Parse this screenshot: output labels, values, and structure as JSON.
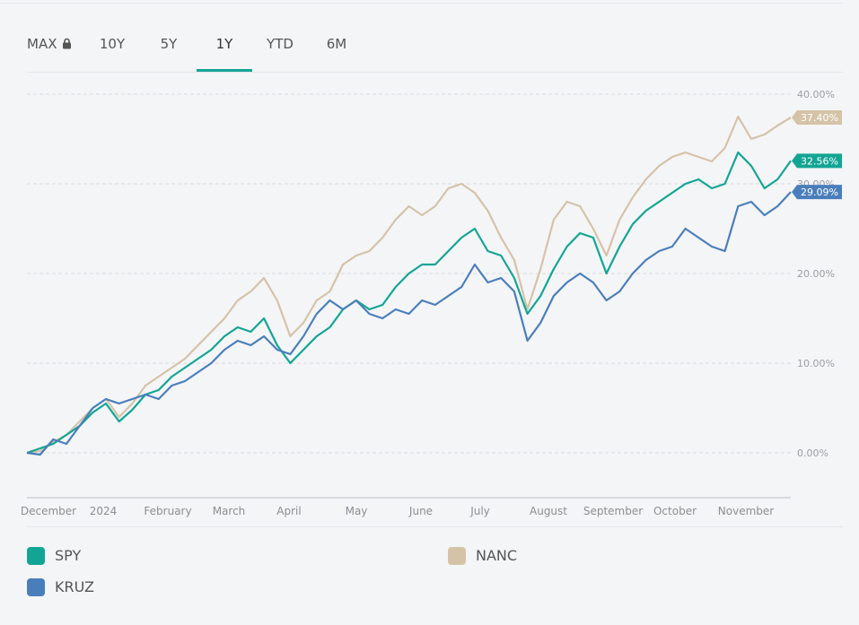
{
  "tabs": [
    {
      "label": "MAX",
      "locked": true
    },
    {
      "label": "10Y"
    },
    {
      "label": "5Y"
    },
    {
      "label": "1Y",
      "active": true
    },
    {
      "label": "YTD"
    },
    {
      "label": "6M"
    }
  ],
  "colors": {
    "SPY": "#12a594",
    "KRUZ": "#4a7ebb",
    "NANC": "#d5c3a8",
    "accent": "#16a596"
  },
  "chart_data": {
    "type": "line",
    "y_unit": "%",
    "ylim": [
      0,
      40
    ],
    "y_ticks": [
      "40.00%",
      "30.00%",
      "20.00%",
      "10.00%",
      "0.00%"
    ],
    "x_ticks": [
      "December",
      "2024",
      "February",
      "March",
      "April",
      "May",
      "June",
      "July",
      "August",
      "September",
      "October",
      "November"
    ],
    "grid": true,
    "legend_position": "bottom",
    "series": [
      {
        "name": "SPY",
        "end_label": "32.56%",
        "values": [
          0,
          0.5,
          1.0,
          2.0,
          3.0,
          4.5,
          5.5,
          3.5,
          4.8,
          6.5,
          7.0,
          8.5,
          9.5,
          10.5,
          11.5,
          13.0,
          14.0,
          13.5,
          15.0,
          12.0,
          10.0,
          11.5,
          13.0,
          14.0,
          16.0,
          17.0,
          16.0,
          16.5,
          18.5,
          20.0,
          21.0,
          21.0,
          22.5,
          24.0,
          25.0,
          22.5,
          22.0,
          19.5,
          15.5,
          17.5,
          20.5,
          23.0,
          24.5,
          24.0,
          20.0,
          23.0,
          25.5,
          27.0,
          28.0,
          29.0,
          30.0,
          30.5,
          29.5,
          30.0,
          33.5,
          32.0,
          29.5,
          30.5,
          32.56
        ]
      },
      {
        "name": "KRUZ",
        "end_label": "29.09%",
        "values": [
          0,
          -0.2,
          1.5,
          1.0,
          3.0,
          5.0,
          6.0,
          5.5,
          6.0,
          6.5,
          6.0,
          7.5,
          8.0,
          9.0,
          10.0,
          11.5,
          12.5,
          12.0,
          13.0,
          11.5,
          11.0,
          13.0,
          15.5,
          17.0,
          16.0,
          17.0,
          15.5,
          15.0,
          16.0,
          15.5,
          17.0,
          16.5,
          17.5,
          18.5,
          21.0,
          19.0,
          19.5,
          18.0,
          12.5,
          14.5,
          17.5,
          19.0,
          20.0,
          19.0,
          17.0,
          18.0,
          20.0,
          21.5,
          22.5,
          23.0,
          25.0,
          24.0,
          23.0,
          22.5,
          27.5,
          28.0,
          26.5,
          27.5,
          29.09
        ]
      },
      {
        "name": "NANC",
        "end_label": "37.40%",
        "values": [
          0,
          0.2,
          1.2,
          2.0,
          3.5,
          5.0,
          6.0,
          4.0,
          5.5,
          7.5,
          8.5,
          9.5,
          10.5,
          12.0,
          13.5,
          15.0,
          17.0,
          18.0,
          19.5,
          17.0,
          13.0,
          14.5,
          17.0,
          18.0,
          21.0,
          22.0,
          22.5,
          24.0,
          26.0,
          27.5,
          26.5,
          27.5,
          29.5,
          30.0,
          29.0,
          27.0,
          24.0,
          21.5,
          16.0,
          20.5,
          26.0,
          28.0,
          27.5,
          25.0,
          22.0,
          26.0,
          28.5,
          30.5,
          32.0,
          33.0,
          33.5,
          33.0,
          32.5,
          34.0,
          37.5,
          35.0,
          35.5,
          36.5,
          37.4
        ]
      }
    ]
  },
  "legend": [
    {
      "name": "SPY"
    },
    {
      "name": "KRUZ"
    },
    {
      "name": "NANC"
    }
  ]
}
